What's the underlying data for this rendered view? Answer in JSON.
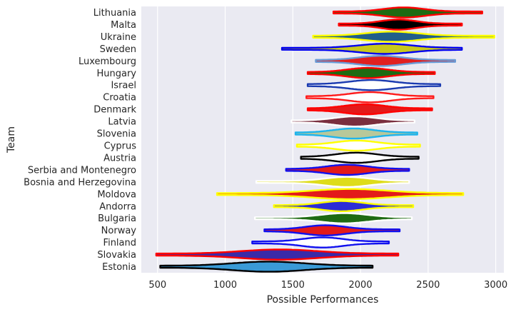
{
  "chart_data": {
    "type": "violin",
    "orientation": "horizontal",
    "xlabel": "Possible Performances",
    "ylabel": "Team",
    "xlim": [
      380,
      3060
    ],
    "xticks": [
      500,
      1000,
      1500,
      2000,
      2500,
      3000
    ],
    "grid": true,
    "teams": [
      {
        "name": "Lithuania",
        "min": 1800,
        "max": 2900,
        "center": 2320,
        "spread": 150,
        "fill": "#1e6b12",
        "stroke": "#ff0000"
      },
      {
        "name": "Malta",
        "min": 1840,
        "max": 2750,
        "center": 2280,
        "spread": 130,
        "fill": "#000000",
        "stroke": "#ff0000"
      },
      {
        "name": "Ukraine",
        "min": 1650,
        "max": 2990,
        "center": 2230,
        "spread": 190,
        "fill": "#215f8a",
        "stroke": "#ffff00"
      },
      {
        "name": "Sweden",
        "min": 1420,
        "max": 2750,
        "center": 2180,
        "spread": 190,
        "fill": "#c8c81a",
        "stroke": "#0000ee"
      },
      {
        "name": "Luxembourg",
        "min": 1670,
        "max": 2700,
        "center": 2150,
        "spread": 160,
        "fill": "#e12020",
        "stroke": "#6a9bd6"
      },
      {
        "name": "Hungary",
        "min": 1610,
        "max": 2550,
        "center": 2050,
        "spread": 150,
        "fill": "#1e6b12",
        "stroke": "#ff0000"
      },
      {
        "name": "Israel",
        "min": 1610,
        "max": 2590,
        "center": 2080,
        "spread": 160,
        "fill": "#ffffff",
        "stroke": "#1a3ab0"
      },
      {
        "name": "Croatia",
        "min": 1600,
        "max": 2540,
        "center": 2070,
        "spread": 150,
        "fill": "#ffffff",
        "stroke": "#ff1a1a"
      },
      {
        "name": "Denmark",
        "min": 1610,
        "max": 2530,
        "center": 2030,
        "spread": 150,
        "fill": "#e31a1a",
        "stroke": "#ff0000"
      },
      {
        "name": "Latvia",
        "min": 1490,
        "max": 2400,
        "center": 1960,
        "spread": 150,
        "fill": "#7a2e3e",
        "stroke": "#ffffff"
      },
      {
        "name": "Slovenia",
        "min": 1520,
        "max": 2420,
        "center": 1950,
        "spread": 150,
        "fill": "#b8c89a",
        "stroke": "#1eb4ec"
      },
      {
        "name": "Cyprus",
        "min": 1530,
        "max": 2440,
        "center": 1970,
        "spread": 150,
        "fill": "#ffffff",
        "stroke": "#ffff00"
      },
      {
        "name": "Austria",
        "min": 1560,
        "max": 2430,
        "center": 1970,
        "spread": 150,
        "fill": "#ffffff",
        "stroke": "#000000"
      },
      {
        "name": "Serbia and Montenegro",
        "min": 1450,
        "max": 2360,
        "center": 1900,
        "spread": 150,
        "fill": "#e31a1a",
        "stroke": "#1010ee"
      },
      {
        "name": "Bosnia and Herzegovina",
        "min": 1230,
        "max": 2360,
        "center": 1900,
        "spread": 160,
        "fill": "#dedc1a",
        "stroke": "#ffffff"
      },
      {
        "name": "Moldova",
        "min": 940,
        "max": 2760,
        "center": 1920,
        "spread": 270,
        "fill": "#e31a1a",
        "stroke": "#ffff00"
      },
      {
        "name": "Andorra",
        "min": 1360,
        "max": 2390,
        "center": 1860,
        "spread": 150,
        "fill": "#2c2cd6",
        "stroke": "#ffff00"
      },
      {
        "name": "Bulgaria",
        "min": 1220,
        "max": 2380,
        "center": 1880,
        "spread": 170,
        "fill": "#1e6b12",
        "stroke": "#ffffff"
      },
      {
        "name": "Norway",
        "min": 1290,
        "max": 2290,
        "center": 1740,
        "spread": 150,
        "fill": "#e31a1a",
        "stroke": "#1010ee"
      },
      {
        "name": "Finland",
        "min": 1200,
        "max": 2210,
        "center": 1720,
        "spread": 150,
        "fill": "#ffffff",
        "stroke": "#1010ee"
      },
      {
        "name": "Slovakia",
        "min": 490,
        "max": 2280,
        "center": 1400,
        "spread": 280,
        "fill": "#3a2aa8",
        "stroke": "#ff0000"
      },
      {
        "name": "Estonia",
        "min": 520,
        "max": 2090,
        "center": 1320,
        "spread": 260,
        "fill": "#3a9ad6",
        "stroke": "#000000"
      }
    ]
  }
}
